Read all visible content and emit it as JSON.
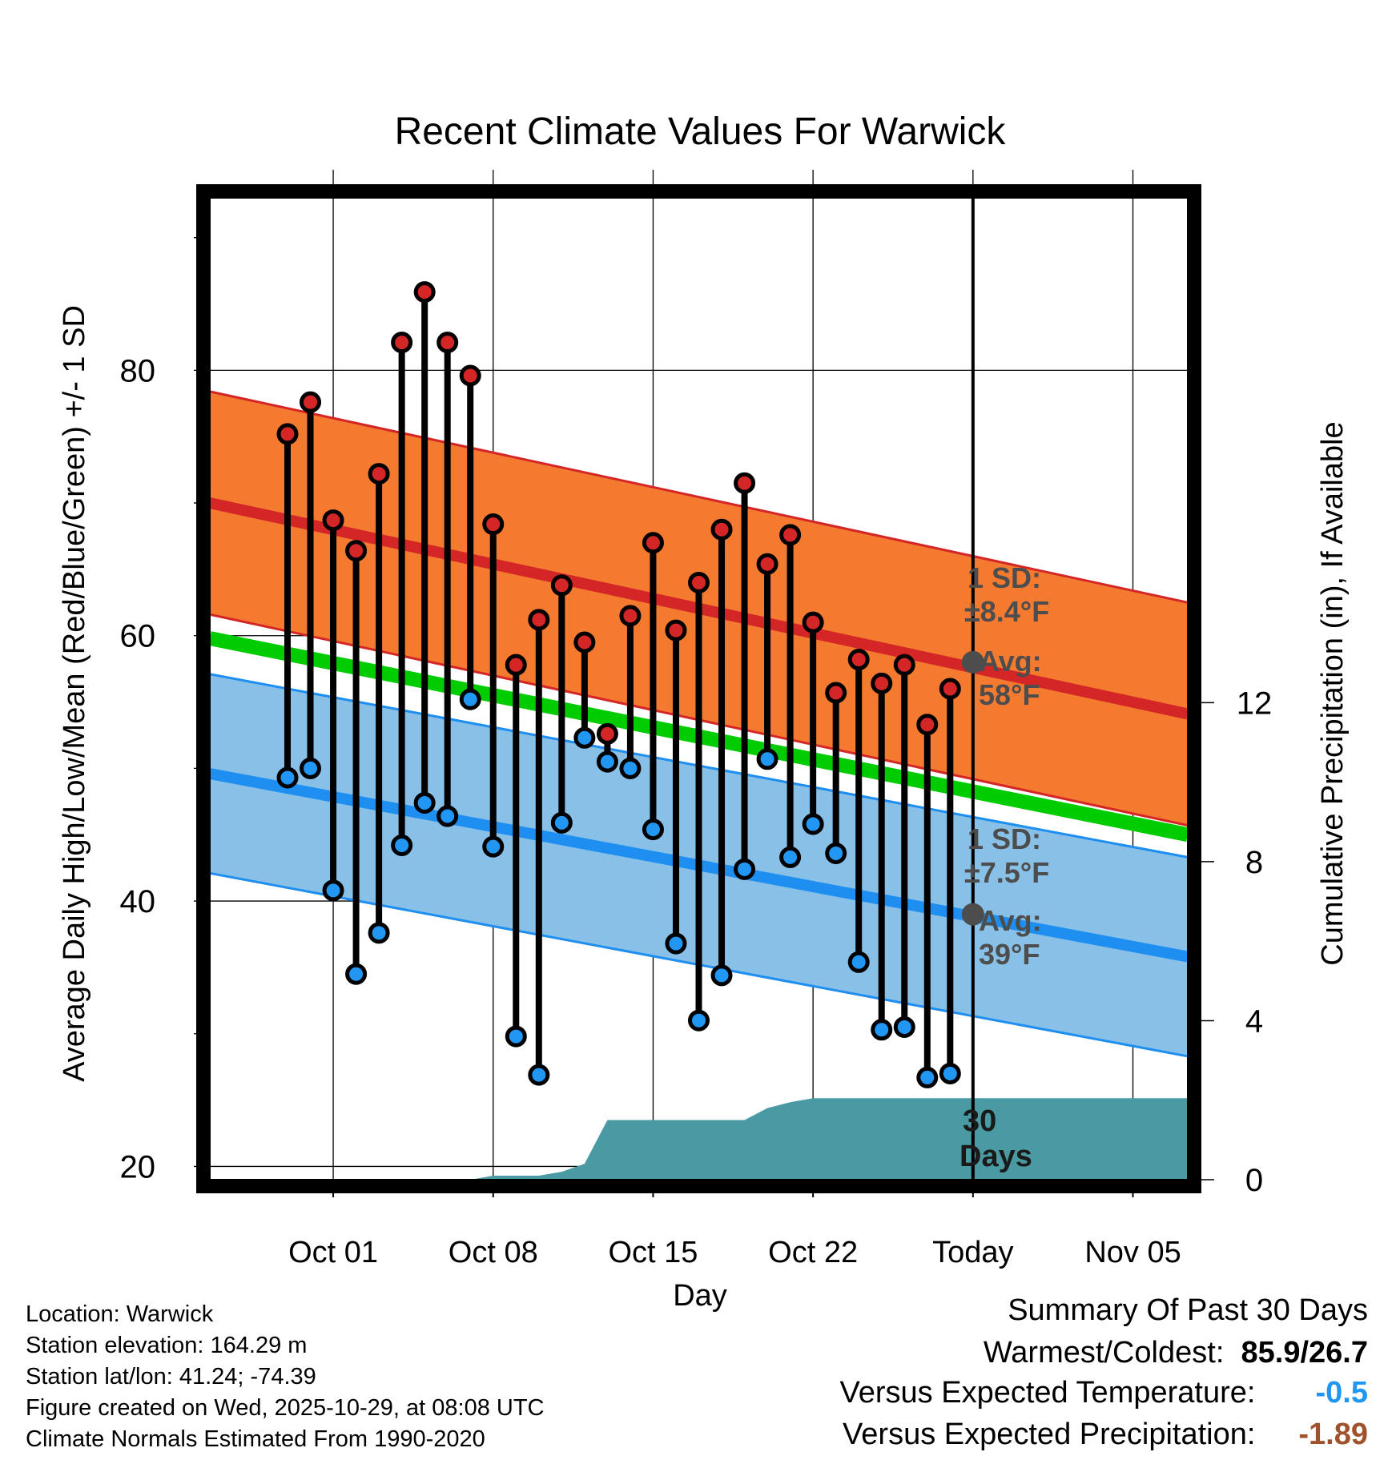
{
  "chart_data": {
    "type": "line",
    "title": "Recent Climate Values For Warwick",
    "xlabel": "Day",
    "ylabel_left": "Average Daily High/Low/Mean (Red/Blue/Green) +/- 1 SD",
    "ylabel_right": "Cumulative Precipitation (in), If Available",
    "ylim_left": [
      19,
      93
    ],
    "ylim_right": [
      0,
      24.7
    ],
    "xlim_days": [
      -33.4,
      9.4
    ],
    "x_ticks": [
      {
        "day": -28,
        "label": "Oct 01"
      },
      {
        "day": -21,
        "label": "Oct 08"
      },
      {
        "day": -14,
        "label": "Oct 15"
      },
      {
        "day": -7,
        "label": "Oct 22"
      },
      {
        "day": 0,
        "label": "Today"
      },
      {
        "day": 7,
        "label": "Nov 05"
      }
    ],
    "y_ticks_left": [
      20,
      40,
      60,
      80
    ],
    "y_ticks_right": [
      0,
      4,
      8,
      12
    ],
    "days": [
      -30,
      -29,
      -28,
      -27,
      -26,
      -25,
      -24,
      -23,
      -22,
      -21,
      -20,
      -19,
      -18,
      -17,
      -16,
      -15,
      -14,
      -13,
      -12,
      -11,
      -10,
      -9,
      -8,
      -7,
      -6,
      -5,
      -4,
      -3,
      -2,
      -1
    ],
    "highs": [
      75.2,
      77.6,
      68.7,
      66.4,
      72.2,
      82.1,
      85.9,
      82.1,
      79.6,
      68.4,
      57.8,
      61.2,
      63.8,
      59.5,
      52.6,
      61.5,
      67.0,
      60.4,
      64.0,
      68.0,
      71.5,
      65.4,
      67.6,
      61.0,
      55.7,
      58.2,
      56.4,
      57.8,
      53.3,
      56.0
    ],
    "lows": [
      49.3,
      50.0,
      40.8,
      34.5,
      37.6,
      44.2,
      47.4,
      46.4,
      55.2,
      44.1,
      29.8,
      26.9,
      45.9,
      52.3,
      50.5,
      50.0,
      45.4,
      36.8,
      31.0,
      34.4,
      42.4,
      50.7,
      43.3,
      45.8,
      43.6,
      35.4,
      30.3,
      30.5,
      26.7,
      27.0
    ],
    "normal_high": {
      "name": "Average High",
      "day_start": -33.4,
      "day_end": 9.4,
      "values": [
        70.0,
        54.1
      ],
      "sd": 8.4
    },
    "normal_low": {
      "name": "Average Low",
      "day_start": -33.4,
      "day_end": 9.4,
      "values": [
        49.6,
        35.8
      ],
      "sd": 7.5
    },
    "normal_mean": {
      "name": "Average Mean",
      "day_start": -33.4,
      "day_end": 9.4,
      "values": [
        59.8,
        45.0
      ]
    },
    "precip_cumulative": {
      "days": [
        -30,
        -22,
        -21,
        -20,
        -19,
        -18,
        -17,
        -16,
        -15,
        -14,
        -13,
        -12,
        -11,
        -10,
        -9,
        -8,
        -7,
        -6,
        -5,
        -4,
        -3,
        -2,
        -1,
        0,
        9.4
      ],
      "values": [
        0,
        0,
        0.1,
        0.1,
        0.1,
        0.2,
        0.4,
        1.5,
        1.5,
        1.5,
        1.5,
        1.5,
        1.5,
        1.5,
        1.8,
        1.95,
        2.05,
        2.05,
        2.05,
        2.05,
        2.05,
        2.05,
        2.05,
        2.05,
        2.05
      ]
    },
    "annotations": {
      "high_sd_label": "1 SD:",
      "high_sd_value": "±8.4°F",
      "high_avg_label": "Avg:",
      "high_avg_value": "58°F",
      "low_sd_label": "1 SD:",
      "low_sd_value": "±7.5°F",
      "low_avg_label": "Avg:",
      "low_avg_value": "39°F",
      "today_high_avg": 58,
      "today_low_avg": 39,
      "window_label_1": "30",
      "window_label_2": "Days"
    }
  },
  "footer": {
    "location": "Location: Warwick",
    "elevation": "Station elevation: 164.29 m",
    "latlon": "Station lat/lon: 41.24; -74.39",
    "created": "Figure created on Wed, 2025-10-29, at 08:08 UTC",
    "normals": "Climate Normals Estimated From 1990-2020"
  },
  "summary": {
    "title": "Summary Of Past 30 Days",
    "warm_cold_label": "Warmest/Coldest:",
    "warm_cold_value": "85.9/26.7",
    "temp_label": "Versus Expected Temperature:",
    "temp_value": "-0.5",
    "precip_label": "Versus Expected Precipitation:",
    "precip_value": "-1.89"
  },
  "colors": {
    "high_band": "#f47a30",
    "high_line": "#d42626",
    "low_band": "#88c0e8",
    "low_line": "#1e8ff0",
    "mean_line": "#00cc00",
    "precip": "#4a9aa3",
    "high_marker": "#d42626",
    "low_marker": "#2196f3",
    "avg_marker": "#4d4d4d",
    "annotation_text": "#4d4d4d",
    "temp_value": "#2196f3",
    "precip_value": "#a0522d"
  }
}
